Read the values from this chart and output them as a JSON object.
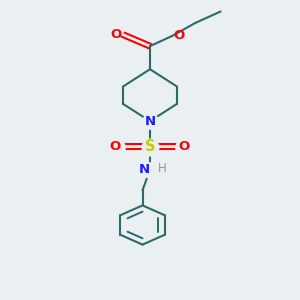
{
  "background_color": "#eaeff2",
  "bond_color": "#2d6b6b",
  "N_color": "#1a1aff",
  "O_color": "#ff0000",
  "S_color": "#cccc00",
  "H_color": "#8a9a9a",
  "line_width": 1.5,
  "font_size": 9.5,
  "figsize": [
    3.0,
    3.0
  ],
  "dpi": 100,
  "xlim": [
    0,
    10
  ],
  "ylim": [
    0,
    13
  ]
}
